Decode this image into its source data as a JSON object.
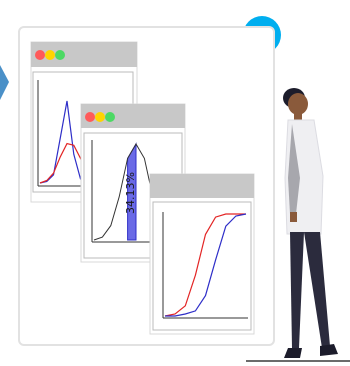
{
  "illustration": {
    "accent_color": "#00AEEF",
    "window_controls": [
      "#FF5A5A",
      "#FFD400",
      "#4CD964"
    ],
    "window_titlebar_color": "#C8C8C8",
    "panel_border_color": "#DADADA",
    "series_colors": {
      "red": "#E32525",
      "blue": "#2E2EC8"
    },
    "percent_label": "34.13%"
  },
  "chart_data": [
    {
      "type": "line",
      "series": [
        {
          "values": [
            0,
            0.02,
            0.1,
            0.55,
            1.0,
            0.35,
            0.05,
            0.01,
            0
          ]
        },
        {
          "values": [
            0,
            0.03,
            0.12,
            0.32,
            0.48,
            0.46,
            0.3,
            0.12,
            0.04
          ]
        }
      ]
    },
    {
      "type": "area",
      "series": [
        {
          "values": [
            0,
            0.03,
            0.15,
            0.45,
            0.85,
            1.0,
            0.85,
            0.45,
            0.15,
            0.03,
            0
          ]
        }
      ],
      "shaded_region": [
        0,
        1
      ],
      "annotation": "34.13%"
    },
    {
      "type": "line",
      "series": [
        {
          "values": [
            0,
            0.02,
            0.1,
            0.4,
            0.8,
            0.97,
            1.0,
            1.0,
            1.0
          ]
        },
        {
          "values": [
            0,
            0.0,
            0.02,
            0.05,
            0.2,
            0.55,
            0.88,
            0.98,
            1.0
          ]
        }
      ]
    }
  ]
}
